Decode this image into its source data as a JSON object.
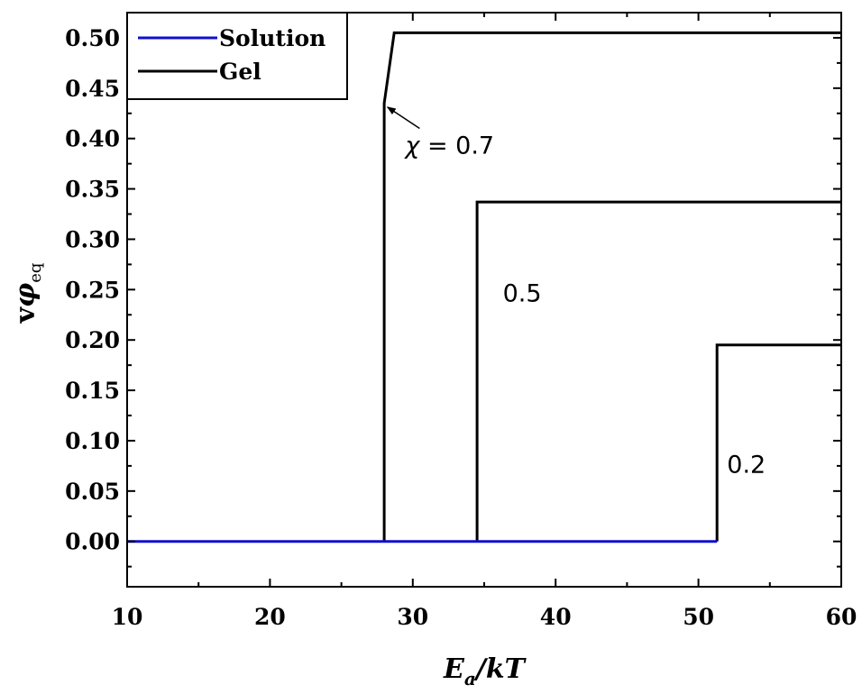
{
  "chart_data": {
    "type": "line",
    "xlabel": {
      "main": "E",
      "sub": "a",
      "rest": "/kT"
    },
    "ylabel": {
      "pre": "v",
      "main": "φ",
      "sub": "eq"
    },
    "xlim": [
      10,
      60
    ],
    "ylim": [
      -0.045,
      0.525
    ],
    "x_ticks": [
      10,
      20,
      30,
      40,
      50,
      60
    ],
    "x_tick_labels": [
      "10",
      "20",
      "30",
      "40",
      "50",
      "60"
    ],
    "y_ticks": [
      0.0,
      0.05,
      0.1,
      0.15,
      0.2,
      0.25,
      0.3,
      0.35,
      0.4,
      0.45,
      0.5
    ],
    "y_tick_labels": [
      "0.00",
      "0.05",
      "0.10",
      "0.15",
      "0.20",
      "0.25",
      "0.30",
      "0.35",
      "0.40",
      "0.45",
      "0.50"
    ],
    "grid": false,
    "legend_position": "top-left",
    "legend": [
      {
        "label": "Solution",
        "color": "#1010d0"
      },
      {
        "label": "Gel",
        "color": "#000000"
      }
    ],
    "series": [
      {
        "name": "Solution",
        "color": "#1010d0",
        "x": [
          10,
          28.0,
          34.5,
          51.3
        ],
        "y": [
          0,
          0,
          0,
          0
        ]
      },
      {
        "name": "Gel",
        "color": "#000000",
        "x": [
          28.0,
          28.0,
          28.7,
          60
        ],
        "y": [
          0,
          0.435,
          0.505,
          0.505
        ]
      },
      {
        "name": "Gel",
        "color": "#000000",
        "x": [
          34.5,
          34.5,
          60
        ],
        "y": [
          0,
          0.337,
          0.337
        ]
      },
      {
        "name": "Gel",
        "color": "#000000",
        "x": [
          51.3,
          51.3,
          60
        ],
        "y": [
          0,
          0.195,
          0.195
        ]
      }
    ],
    "annotations": [
      {
        "text": "= 0.7",
        "symbol": "χ",
        "x": 30.1,
        "y": 0.385,
        "arrow_to": [
          28.1,
          0.433
        ]
      },
      {
        "text": "0.5",
        "x": 36.3,
        "y": 0.238
      },
      {
        "text": "0.2",
        "x": 52.0,
        "y": 0.068
      }
    ]
  }
}
